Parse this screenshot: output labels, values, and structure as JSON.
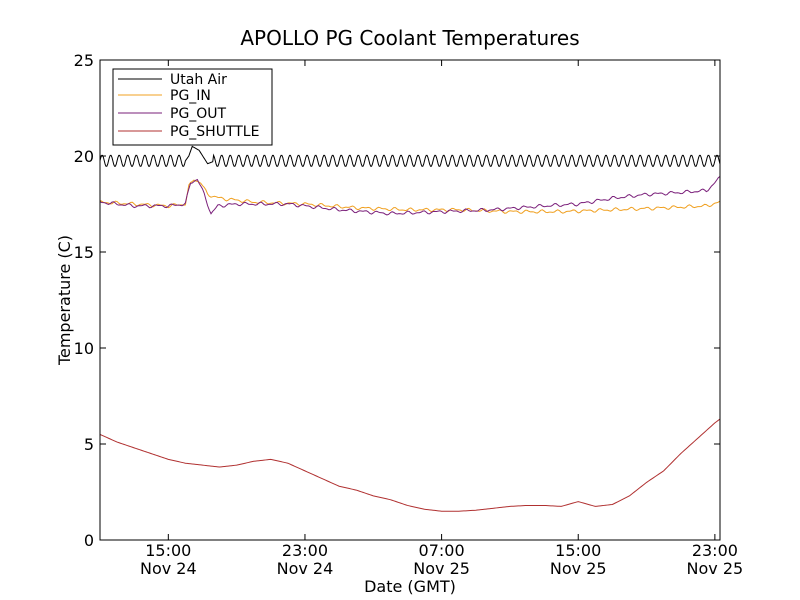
{
  "chart_data": {
    "type": "line",
    "title": "APOLLO PG Coolant Temperatures",
    "xlabel": "Date (GMT)",
    "ylabel": "Temperature (C)",
    "x_unit": "hours since Nov 24 11:00 GMT",
    "xlim": [
      0,
      36.3
    ],
    "ylim": [
      0,
      25
    ],
    "yticks": [
      0,
      5,
      10,
      15,
      20,
      25
    ],
    "xticks": [
      {
        "value": 4,
        "time": "15:00",
        "date": "Nov 24"
      },
      {
        "value": 12,
        "time": "23:00",
        "date": "Nov 24"
      },
      {
        "value": 20,
        "time": "07:00",
        "date": "Nov 25"
      },
      {
        "value": 28,
        "time": "15:00",
        "date": "Nov 25"
      },
      {
        "value": 36,
        "time": "23:00",
        "date": "Nov 25"
      }
    ],
    "grid": false,
    "legend_position": "top-left",
    "series": [
      {
        "name": "Utah Air",
        "color": "#000000",
        "baseline": 19.75,
        "oscillation_amplitude": 0.3,
        "oscillation_period_hours": 0.5,
        "points": [
          [
            0,
            19.7
          ],
          [
            5.0,
            19.75
          ],
          [
            5.2,
            20.0
          ],
          [
            5.4,
            20.5
          ],
          [
            5.8,
            20.3
          ],
          [
            6.3,
            19.6
          ],
          [
            6.6,
            19.7
          ],
          [
            36.3,
            19.75
          ]
        ]
      },
      {
        "name": "PG_IN",
        "color": "#f0a020",
        "points": [
          [
            0,
            17.6
          ],
          [
            2,
            17.5
          ],
          [
            4,
            17.4
          ],
          [
            5.0,
            17.5
          ],
          [
            5.2,
            18.4
          ],
          [
            5.5,
            18.8
          ],
          [
            5.9,
            18.6
          ],
          [
            6.3,
            18.0
          ],
          [
            7,
            17.8
          ],
          [
            9,
            17.6
          ],
          [
            12,
            17.5
          ],
          [
            15,
            17.3
          ],
          [
            18,
            17.2
          ],
          [
            21,
            17.2
          ],
          [
            24,
            17.1
          ],
          [
            27,
            17.1
          ],
          [
            30,
            17.2
          ],
          [
            33,
            17.3
          ],
          [
            35.5,
            17.4
          ],
          [
            36.3,
            17.6
          ]
        ]
      },
      {
        "name": "PG_OUT",
        "color": "#7a1f7a",
        "points": [
          [
            0,
            17.6
          ],
          [
            2,
            17.4
          ],
          [
            4,
            17.4
          ],
          [
            5.0,
            17.5
          ],
          [
            5.3,
            18.6
          ],
          [
            5.7,
            18.8
          ],
          [
            6.1,
            18.0
          ],
          [
            6.5,
            17.0
          ],
          [
            6.9,
            17.4
          ],
          [
            8,
            17.5
          ],
          [
            11,
            17.5
          ],
          [
            14,
            17.2
          ],
          [
            17,
            17.0
          ],
          [
            20,
            17.1
          ],
          [
            23,
            17.2
          ],
          [
            26,
            17.4
          ],
          [
            28,
            17.5
          ],
          [
            30,
            17.8
          ],
          [
            32,
            18.0
          ],
          [
            34,
            18.1
          ],
          [
            35.5,
            18.2
          ],
          [
            35.9,
            18.5
          ],
          [
            36.3,
            18.9
          ]
        ]
      },
      {
        "name": "PG_SHUTTLE",
        "color": "#b03030",
        "points": [
          [
            0,
            5.5
          ],
          [
            1,
            5.1
          ],
          [
            2,
            4.8
          ],
          [
            3,
            4.5
          ],
          [
            4,
            4.2
          ],
          [
            5,
            4.0
          ],
          [
            6,
            3.9
          ],
          [
            7,
            3.8
          ],
          [
            8,
            3.9
          ],
          [
            9,
            4.1
          ],
          [
            10,
            4.2
          ],
          [
            11,
            4.0
          ],
          [
            12,
            3.6
          ],
          [
            13,
            3.2
          ],
          [
            14,
            2.8
          ],
          [
            15,
            2.6
          ],
          [
            16,
            2.3
          ],
          [
            17,
            2.1
          ],
          [
            18,
            1.8
          ],
          [
            19,
            1.6
          ],
          [
            20,
            1.5
          ],
          [
            21,
            1.5
          ],
          [
            22,
            1.55
          ],
          [
            23,
            1.65
          ],
          [
            24,
            1.75
          ],
          [
            25,
            1.8
          ],
          [
            26,
            1.8
          ],
          [
            27,
            1.75
          ],
          [
            28,
            2.0
          ],
          [
            29,
            1.75
          ],
          [
            30,
            1.85
          ],
          [
            31,
            2.3
          ],
          [
            32,
            3.0
          ],
          [
            33,
            3.6
          ],
          [
            34,
            4.5
          ],
          [
            35,
            5.3
          ],
          [
            36,
            6.1
          ],
          [
            36.3,
            6.3
          ]
        ]
      }
    ]
  }
}
